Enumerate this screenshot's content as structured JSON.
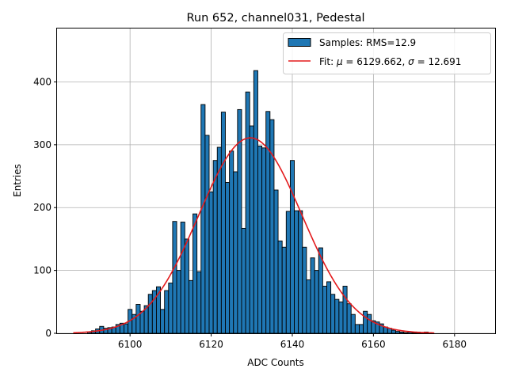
{
  "chart_data": {
    "type": "bar",
    "title": "Run 652, channel031, Pedestal",
    "xlabel": "ADC Counts",
    "ylabel": "Entries",
    "xlim": [
      6082,
      6190
    ],
    "ylim": [
      0,
      485
    ],
    "xticks": [
      "6100",
      "6120",
      "6140",
      "6160",
      "6180"
    ],
    "yticks": [
      "0",
      "100",
      "200",
      "300",
      "400"
    ],
    "grid": true,
    "legend_position": "top-right",
    "legend": {
      "samples_prefix": "Samples: RMS=12.9",
      "fit_prefix": "Fit: ",
      "mu_symbol": "μ",
      "fit_mid": " = 6129.662, ",
      "sigma_symbol": "σ",
      "fit_suffix": " = 12.691"
    },
    "colors": {
      "bars": "#1f77b4",
      "fit": "#e31a1c",
      "grid": "#b0b0b0"
    },
    "series": [
      {
        "name": "Samples: RMS=12.9",
        "kind": "histogram",
        "bin_width": 1,
        "x": [
          6090,
          6091,
          6092,
          6093,
          6094,
          6095,
          6096,
          6097,
          6098,
          6099,
          6100,
          6101,
          6102,
          6103,
          6104,
          6105,
          6106,
          6107,
          6108,
          6109,
          6110,
          6111,
          6112,
          6113,
          6114,
          6115,
          6116,
          6117,
          6118,
          6119,
          6120,
          6121,
          6122,
          6123,
          6124,
          6125,
          6126,
          6127,
          6128,
          6129,
          6130,
          6131,
          6132,
          6133,
          6134,
          6135,
          6136,
          6137,
          6138,
          6139,
          6140,
          6141,
          6142,
          6143,
          6144,
          6145,
          6146,
          6147,
          6148,
          6149,
          6150,
          6151,
          6152,
          6153,
          6154,
          6155,
          6156,
          6157,
          6158,
          6159,
          6160,
          6161,
          6162,
          6163,
          6164,
          6165,
          6166,
          6167,
          6168,
          6169,
          6170,
          6171,
          6172,
          6173,
          6174
        ],
        "values": [
          2,
          4,
          7,
          11,
          8,
          9,
          10,
          14,
          16,
          15,
          38,
          30,
          46,
          35,
          44,
          62,
          68,
          74,
          38,
          68,
          80,
          178,
          100,
          177,
          150,
          84,
          190,
          98,
          364,
          315,
          225,
          275,
          296,
          352,
          240,
          290,
          257,
          356,
          167,
          384,
          330,
          418,
          298,
          295,
          353,
          340,
          228,
          147,
          137,
          194,
          275,
          195,
          195,
          137,
          85,
          120,
          100,
          136,
          75,
          82,
          62,
          54,
          50,
          75,
          47,
          30,
          14,
          14,
          35,
          30,
          20,
          18,
          15,
          10,
          8,
          5,
          3,
          2,
          1,
          2,
          1,
          2,
          1,
          2,
          1
        ]
      },
      {
        "name": "Fit",
        "kind": "gaussian",
        "mu": 6129.662,
        "sigma": 12.691,
        "amplitude": 311,
        "x_range": [
          6086,
          6175
        ]
      }
    ]
  }
}
